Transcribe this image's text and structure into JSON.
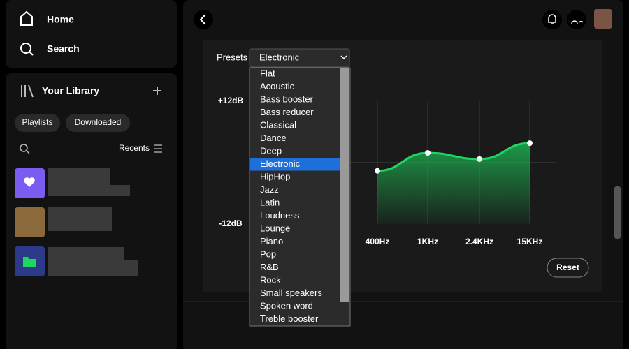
{
  "sidebar": {
    "nav": [
      "Home",
      "Search"
    ],
    "library_title": "Your Library",
    "filters": [
      "Playlists",
      "Downloaded"
    ],
    "sort": "Recents"
  },
  "equalizer": {
    "presets_label": "Presets",
    "selected": "Electronic",
    "options": [
      "Flat",
      "Acoustic",
      "Bass booster",
      "Bass reducer",
      "Classical",
      "Dance",
      "Deep",
      "Electronic",
      "HipHop",
      "Jazz",
      "Latin",
      "Loudness",
      "Lounge",
      "Piano",
      "Pop",
      "R&B",
      "Rock",
      "Small speakers",
      "Spoken word",
      "Treble booster"
    ],
    "ylim": [
      -12,
      12
    ],
    "yticks": [
      {
        "value": 12,
        "label": "+12dB"
      },
      {
        "value": -12,
        "label": "-12dB"
      }
    ],
    "bands": [
      "400Hz",
      "1KHz",
      "2.4KHz",
      "15KHz"
    ],
    "gains": [
      -1.6,
      1.9,
      0.7,
      3.8
    ],
    "color": "#1ed760",
    "reset": "Reset"
  }
}
